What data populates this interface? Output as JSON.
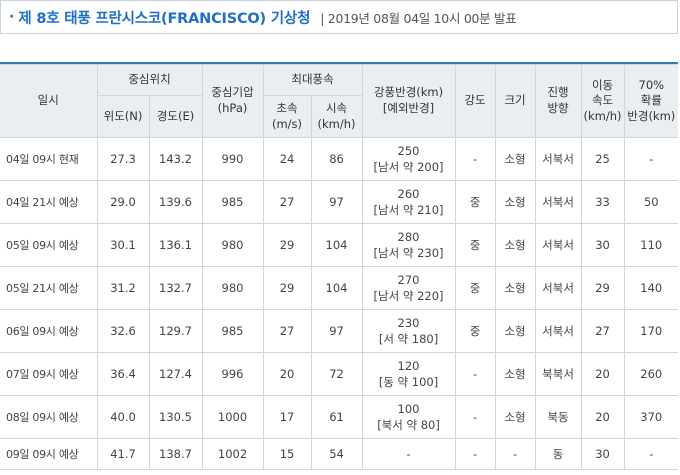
{
  "header": {
    "bullet": "·",
    "title": "제 8호 태풍 프란시스코(FRANCISCO) 기상청",
    "issued": "| 2019년 08월 04일 10시 00분 발표"
  },
  "table": {
    "columns": {
      "datetime": "일시",
      "center_position": "중심위치",
      "latitude": "위도(N)",
      "longitude": "경도(E)",
      "central_pressure": [
        "중심기압",
        "(hPa)"
      ],
      "max_wind": "최대풍속",
      "wind_ms": [
        "초속",
        "(m/s)"
      ],
      "wind_kmh": [
        "시속",
        "(km/h)"
      ],
      "gale_radius": [
        "강풍반경(km)",
        "[예외반경]"
      ],
      "intensity": "강도",
      "size": "크기",
      "direction": [
        "진행",
        "방향"
      ],
      "speed": [
        "이동",
        "속도",
        "(km/h)"
      ],
      "radius70": [
        "70%",
        "확률",
        "반경(km)"
      ]
    },
    "rows": [
      {
        "datetime": "04일 09시 현재",
        "lat": "27.3",
        "lon": "143.2",
        "pressure": "990",
        "wind_ms": "24",
        "wind_kmh": "86",
        "radius": "250",
        "radius_ex": "[남서 약 200]",
        "intensity": "-",
        "size": "소형",
        "direction": "서북서",
        "speed": "25",
        "radius70": "-"
      },
      {
        "datetime": "04일 21시 예상",
        "lat": "29.0",
        "lon": "139.6",
        "pressure": "985",
        "wind_ms": "27",
        "wind_kmh": "97",
        "radius": "260",
        "radius_ex": "[남서 약 210]",
        "intensity": "중",
        "size": "소형",
        "direction": "서북서",
        "speed": "33",
        "radius70": "50"
      },
      {
        "datetime": "05일 09시 예상",
        "lat": "30.1",
        "lon": "136.1",
        "pressure": "980",
        "wind_ms": "29",
        "wind_kmh": "104",
        "radius": "280",
        "radius_ex": "[남서 약 230]",
        "intensity": "중",
        "size": "소형",
        "direction": "서북서",
        "speed": "30",
        "radius70": "110"
      },
      {
        "datetime": "05일 21시 예상",
        "lat": "31.2",
        "lon": "132.7",
        "pressure": "980",
        "wind_ms": "29",
        "wind_kmh": "104",
        "radius": "270",
        "radius_ex": "[남서 약 220]",
        "intensity": "중",
        "size": "소형",
        "direction": "서북서",
        "speed": "29",
        "radius70": "140"
      },
      {
        "datetime": "06일 09시 예상",
        "lat": "32.6",
        "lon": "129.7",
        "pressure": "985",
        "wind_ms": "27",
        "wind_kmh": "97",
        "radius": "230",
        "radius_ex": "[서 약 180]",
        "intensity": "중",
        "size": "소형",
        "direction": "서북서",
        "speed": "27",
        "radius70": "170"
      },
      {
        "datetime": "07일 09시 예상",
        "lat": "36.4",
        "lon": "127.4",
        "pressure": "996",
        "wind_ms": "20",
        "wind_kmh": "72",
        "radius": "120",
        "radius_ex": "[동 약 100]",
        "intensity": "-",
        "size": "소형",
        "direction": "북북서",
        "speed": "20",
        "radius70": "260"
      },
      {
        "datetime": "08일 09시 예상",
        "lat": "40.0",
        "lon": "130.5",
        "pressure": "1000",
        "wind_ms": "17",
        "wind_kmh": "61",
        "radius": "100",
        "radius_ex": "[북서 약 80]",
        "intensity": "-",
        "size": "소형",
        "direction": "북동",
        "speed": "20",
        "radius70": "370"
      },
      {
        "datetime": "09일 09시 예상",
        "lat": "41.7",
        "lon": "138.7",
        "pressure": "1002",
        "wind_ms": "15",
        "wind_kmh": "54",
        "radius": "-",
        "radius_ex": "",
        "intensity": "-",
        "size": "-",
        "direction": "동",
        "speed": "30",
        "radius70": "-"
      }
    ]
  },
  "colors": {
    "title": "#1f6fc5",
    "header_bg": "#e9eef3",
    "top_rule": "#3a78c2",
    "grid": "#cfd6de"
  }
}
